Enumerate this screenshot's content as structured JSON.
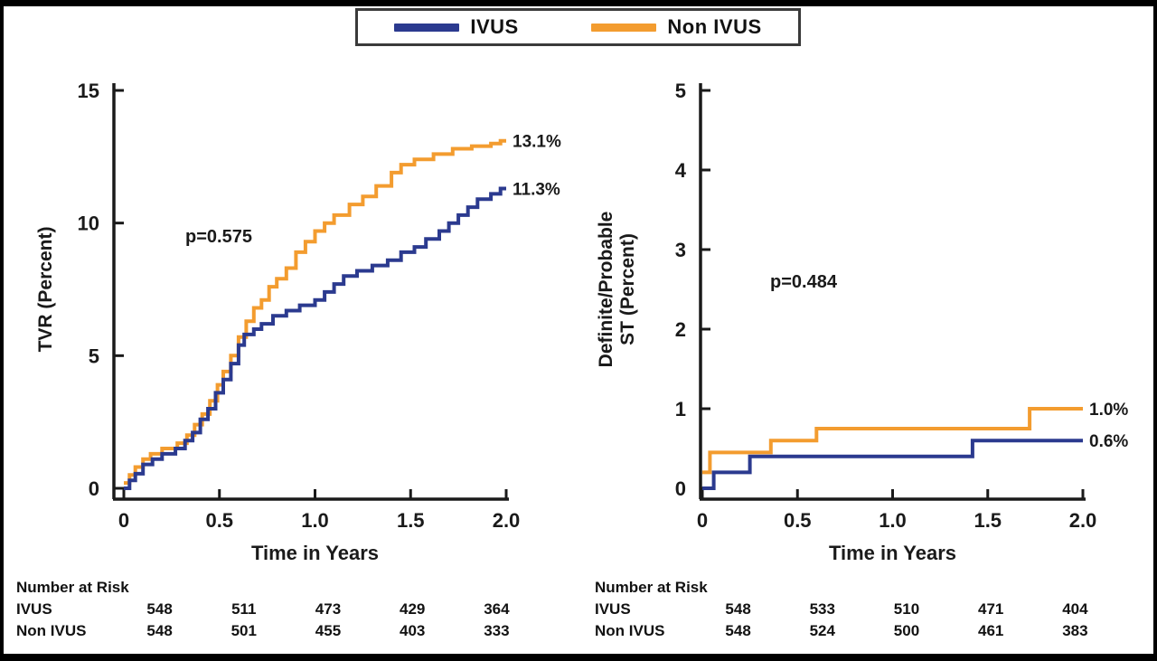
{
  "legend": {
    "items": [
      {
        "label": "IVUS",
        "color": "#2b3a8f"
      },
      {
        "label": "Non IVUS",
        "color": "#f39c2f"
      }
    ]
  },
  "colors": {
    "ivus_blue": "#2b3a8f",
    "non_ivus_orange": "#f39c2f",
    "axis_black": "#1a1a1a"
  },
  "chart_data": [
    {
      "type": "line",
      "subtype": "kaplan-meier-step",
      "panel": "left",
      "ylabel": "TVR (Percent)",
      "ylabel_lines": [
        "TVR (Percent)"
      ],
      "xlabel": "Time in Years",
      "ylim": [
        0,
        15
      ],
      "xlim": [
        0,
        2.0
      ],
      "yticks": [
        0,
        5,
        10,
        15
      ],
      "xticks": [
        0,
        0.5,
        1.0,
        1.5,
        2.0
      ],
      "xtick_labels": [
        "0",
        "0.5",
        "1.0",
        "1.5",
        "2.0"
      ],
      "grid": false,
      "p_value": "p=0.575",
      "series": [
        {
          "name": "Non IVUS",
          "color": "#f39c2f",
          "end_label": "13.1%",
          "end_value": 13.1,
          "points": [
            [
              0,
              0.2
            ],
            [
              0.03,
              0.5
            ],
            [
              0.06,
              0.8
            ],
            [
              0.1,
              1.1
            ],
            [
              0.14,
              1.3
            ],
            [
              0.2,
              1.5
            ],
            [
              0.28,
              1.7
            ],
            [
              0.33,
              2.0
            ],
            [
              0.37,
              2.4
            ],
            [
              0.41,
              2.8
            ],
            [
              0.45,
              3.3
            ],
            [
              0.49,
              3.9
            ],
            [
              0.52,
              4.4
            ],
            [
              0.56,
              5.0
            ],
            [
              0.6,
              5.7
            ],
            [
              0.64,
              6.3
            ],
            [
              0.68,
              6.8
            ],
            [
              0.72,
              7.1
            ],
            [
              0.76,
              7.6
            ],
            [
              0.8,
              7.9
            ],
            [
              0.85,
              8.3
            ],
            [
              0.9,
              8.9
            ],
            [
              0.95,
              9.3
            ],
            [
              1.0,
              9.7
            ],
            [
              1.05,
              10.0
            ],
            [
              1.1,
              10.3
            ],
            [
              1.18,
              10.7
            ],
            [
              1.25,
              11.0
            ],
            [
              1.32,
              11.4
            ],
            [
              1.4,
              11.9
            ],
            [
              1.45,
              12.2
            ],
            [
              1.52,
              12.4
            ],
            [
              1.62,
              12.6
            ],
            [
              1.72,
              12.8
            ],
            [
              1.82,
              12.9
            ],
            [
              1.92,
              13.0
            ],
            [
              1.97,
              13.1
            ]
          ]
        },
        {
          "name": "IVUS",
          "color": "#2b3a8f",
          "end_label": "11.3%",
          "end_value": 11.3,
          "points": [
            [
              0,
              0
            ],
            [
              0.03,
              0.3
            ],
            [
              0.06,
              0.55
            ],
            [
              0.1,
              0.9
            ],
            [
              0.15,
              1.1
            ],
            [
              0.2,
              1.3
            ],
            [
              0.27,
              1.5
            ],
            [
              0.32,
              1.8
            ],
            [
              0.36,
              2.1
            ],
            [
              0.4,
              2.6
            ],
            [
              0.44,
              3.0
            ],
            [
              0.48,
              3.6
            ],
            [
              0.52,
              4.1
            ],
            [
              0.56,
              4.7
            ],
            [
              0.6,
              5.4
            ],
            [
              0.63,
              5.8
            ],
            [
              0.68,
              6.0
            ],
            [
              0.72,
              6.2
            ],
            [
              0.78,
              6.5
            ],
            [
              0.85,
              6.7
            ],
            [
              0.92,
              6.9
            ],
            [
              1.0,
              7.1
            ],
            [
              1.05,
              7.4
            ],
            [
              1.1,
              7.7
            ],
            [
              1.15,
              8.0
            ],
            [
              1.22,
              8.2
            ],
            [
              1.3,
              8.4
            ],
            [
              1.38,
              8.6
            ],
            [
              1.45,
              8.9
            ],
            [
              1.52,
              9.1
            ],
            [
              1.58,
              9.4
            ],
            [
              1.65,
              9.7
            ],
            [
              1.7,
              10.0
            ],
            [
              1.75,
              10.3
            ],
            [
              1.8,
              10.6
            ],
            [
              1.85,
              10.9
            ],
            [
              1.92,
              11.1
            ],
            [
              1.97,
              11.3
            ]
          ]
        }
      ],
      "number_at_risk": {
        "header": "Number at Risk",
        "rows": [
          {
            "label": "IVUS",
            "values": [
              "548",
              "511",
              "473",
              "429",
              "364"
            ]
          },
          {
            "label": "Non IVUS",
            "values": [
              "548",
              "501",
              "455",
              "403",
              "333"
            ]
          }
        ]
      }
    },
    {
      "type": "line",
      "subtype": "kaplan-meier-step",
      "panel": "right",
      "ylabel": "Definite/Probable ST (Percent)",
      "ylabel_lines": [
        "Definite/Probable",
        "ST (Percent)"
      ],
      "xlabel": "Time in Years",
      "ylim": [
        0,
        5
      ],
      "xlim": [
        0,
        2.0
      ],
      "yticks": [
        0,
        1,
        2,
        3,
        4,
        5
      ],
      "xticks": [
        0,
        0.5,
        1.0,
        1.5,
        2.0
      ],
      "xtick_labels": [
        "0",
        "0.5",
        "1.0",
        "1.5",
        "2.0"
      ],
      "grid": false,
      "p_value": "p=0.484",
      "series": [
        {
          "name": "Non IVUS",
          "color": "#f39c2f",
          "end_label": "1.0%",
          "end_value": 1.0,
          "points": [
            [
              0,
              0.2
            ],
            [
              0.04,
              0.45
            ],
            [
              0.36,
              0.6
            ],
            [
              0.6,
              0.75
            ],
            [
              1.72,
              1.0
            ]
          ]
        },
        {
          "name": "IVUS",
          "color": "#2b3a8f",
          "end_label": "0.6%",
          "end_value": 0.6,
          "points": [
            [
              0,
              0
            ],
            [
              0.06,
              0.2
            ],
            [
              0.25,
              0.4
            ],
            [
              1.42,
              0.6
            ]
          ]
        }
      ],
      "number_at_risk": {
        "header": "Number at Risk",
        "rows": [
          {
            "label": "IVUS",
            "values": [
              "548",
              "533",
              "510",
              "471",
              "404"
            ]
          },
          {
            "label": "Non IVUS",
            "values": [
              "548",
              "524",
              "500",
              "461",
              "383"
            ]
          }
        ]
      }
    }
  ]
}
